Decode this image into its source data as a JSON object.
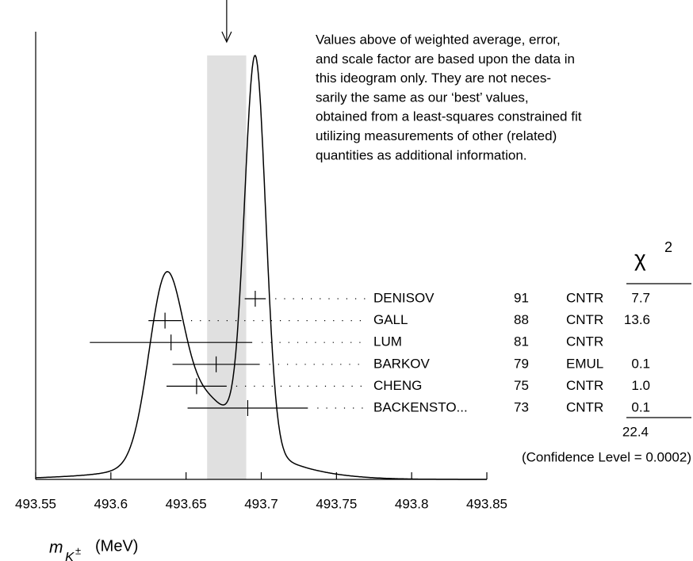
{
  "chart_data": {
    "type": "ideogram",
    "xlim": [
      493.55,
      493.85
    ],
    "xticks": [
      493.55,
      493.6,
      493.65,
      493.7,
      493.75,
      493.8,
      493.85
    ],
    "x_label_symbol": "m",
    "x_label_subscript": "K",
    "x_label_sub_superscript": "±",
    "x_label_unit": "(MeV)",
    "average": 493.677,
    "average_error": 0.013,
    "names": [
      "DENISOV",
      "GALL",
      "LUM",
      "BARKOV",
      "CHENG",
      "BACKENSTO..."
    ],
    "years": [
      91,
      88,
      81,
      79,
      75,
      73
    ],
    "techniques": [
      "CNTR",
      "CNTR",
      "CNTR",
      "EMUL",
      "CNTR",
      "CNTR"
    ],
    "values": [
      493.696,
      493.636,
      493.64,
      493.67,
      493.657,
      493.691
    ],
    "errors": [
      0.007,
      0.011,
      0.054,
      0.029,
      0.02,
      0.04
    ],
    "chi2": [
      "7.7",
      "13.6",
      null,
      "0.1",
      "1.0",
      "0.1"
    ],
    "chi2_header_symbol": "χ",
    "chi2_header_exponent": "2",
    "chi2_total": "22.4",
    "confidence_level": "(Confidence Level = 0.0002)",
    "note_lines": [
      "Values above of weighted average, error,",
      "and scale factor are based upon the data in",
      "this ideogram only.  They are not neces-",
      "sarily the same as our ‘best’ values,",
      "obtained from a least-squares constrained fit",
      "utilizing measurements of other (related)",
      "quantities as additional information."
    ]
  }
}
